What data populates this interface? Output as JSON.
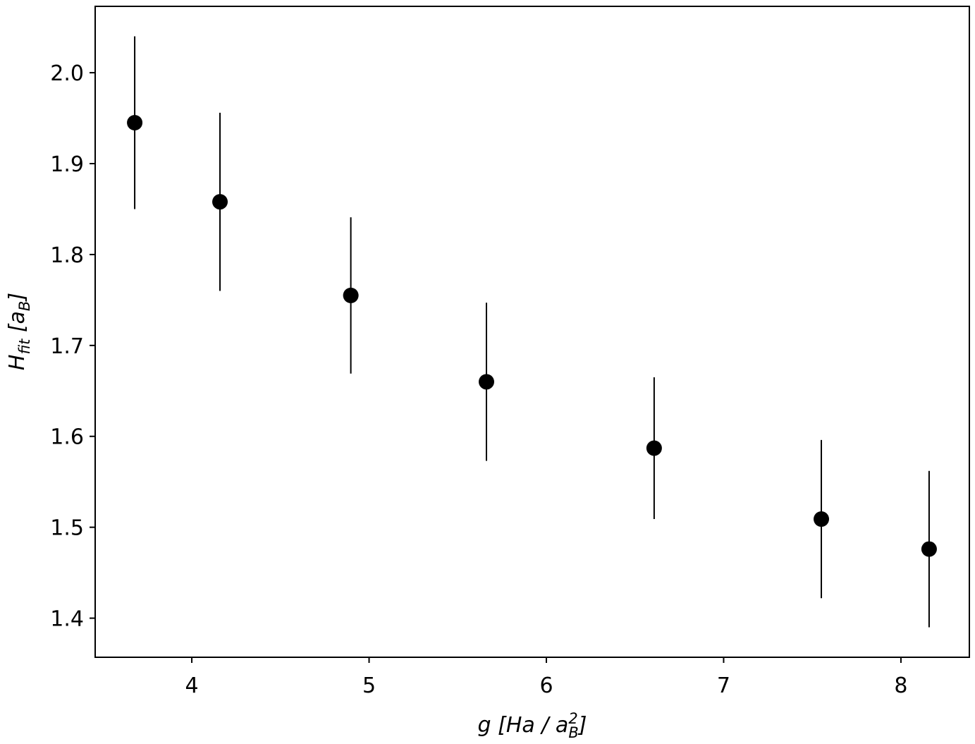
{
  "chart_data": {
    "type": "errorbar",
    "x": [
      3.678,
      4.159,
      4.897,
      5.662,
      6.608,
      7.551,
      8.159
    ],
    "values": [
      1.945,
      1.858,
      1.755,
      1.66,
      1.587,
      1.509,
      1.476
    ],
    "errors": [
      0.095,
      0.098,
      0.086,
      0.087,
      0.078,
      0.087,
      0.086
    ],
    "color": "#000000",
    "xlim": [
      3.455,
      8.386
    ],
    "ylim": [
      1.357,
      2.073
    ],
    "xticks": [
      4,
      5,
      6,
      7,
      8
    ],
    "yticks": [
      1.4,
      1.5,
      1.6,
      1.7,
      1.8,
      1.9,
      {
        "value": 2,
        "label": "2.0"
      }
    ],
    "xlabel": [
      {
        "text": "g [Ha / a"
      },
      {
        "text": "2",
        "pos": "sup"
      },
      {
        "text": "B",
        "pos": "sub",
        "stack": true
      },
      {
        "text": "]"
      }
    ],
    "ylabel": [
      {
        "text": "H"
      },
      {
        "text": "fit",
        "pos": "sub"
      },
      {
        "text": " [a"
      },
      {
        "text": "B",
        "pos": "sub"
      },
      {
        "text": "]"
      }
    ]
  }
}
